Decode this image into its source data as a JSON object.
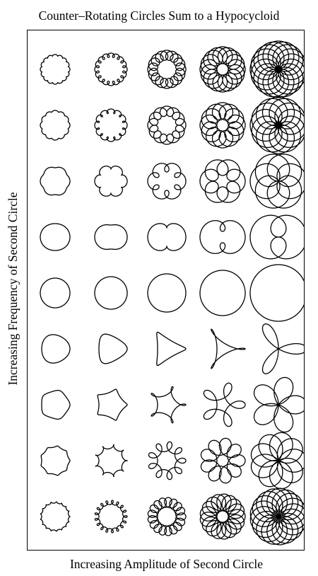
{
  "figure": {
    "title": "Counter–Rotating Circles Sum to a Hypocycloid",
    "xlabel": "Increasing Amplitude of Second Circle",
    "ylabel": "Increasing Frequency of Second Circle"
  },
  "grid": {
    "rows": 9,
    "columns": 5,
    "stroke_color": "#000000",
    "amplitudes_of_second_circle": [
      0.05,
      0.15,
      0.35,
      0.6,
      1.0
    ],
    "frequencies_of_second_circle": [
      17,
      13,
      7,
      3,
      1,
      -2,
      -4,
      -8,
      -16
    ]
  }
}
